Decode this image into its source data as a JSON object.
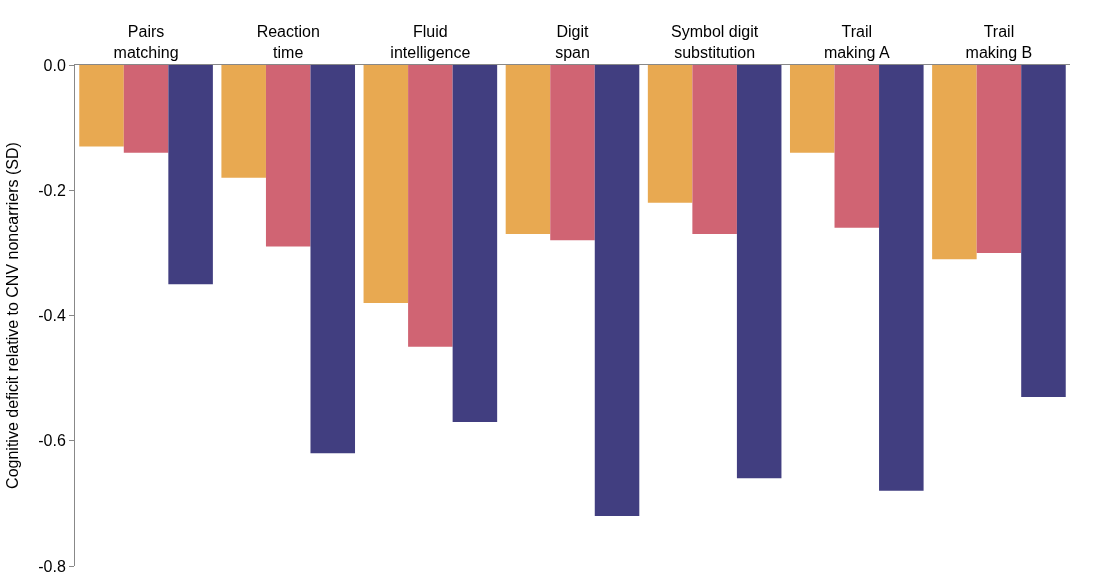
{
  "chart_data": {
    "type": "bar",
    "ylabel": "Cognitive deficit relative to CNV noncarriers (SD)",
    "categories": [
      "Pairs\nmatching",
      "Reaction\ntime",
      "Fluid\nintelligence",
      "Digit\nspan",
      "Symbol digit\nsubstitution",
      "Trail\nmaking A",
      "Trail\nmaking B"
    ],
    "series": [
      {
        "color": "#e8a951",
        "values": [
          -0.13,
          -0.18,
          -0.38,
          -0.27,
          -0.22,
          -0.14,
          -0.31
        ]
      },
      {
        "color": "#d06473",
        "values": [
          -0.14,
          -0.29,
          -0.45,
          -0.28,
          -0.27,
          -0.26,
          -0.3
        ]
      },
      {
        "color": "#413e80",
        "values": [
          -0.35,
          -0.62,
          -0.57,
          -0.72,
          -0.66,
          -0.68,
          -0.53
        ]
      }
    ],
    "ylim": [
      -0.8,
      0
    ],
    "yticks": [
      {
        "value": 0,
        "label": "0.0"
      },
      -0.2,
      -0.4,
      -0.6,
      -0.8
    ]
  }
}
